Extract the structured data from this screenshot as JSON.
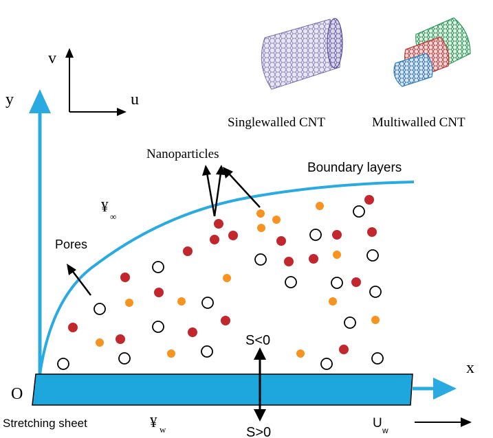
{
  "labels": {
    "v_axis": "v",
    "u_axis": "u",
    "y_axis": "y",
    "x_axis": "x",
    "origin": "O",
    "singlewalled": "Singlewalled CNT",
    "multiwalled": "Multiwalled CNT",
    "nanoparticles": "Nanoparticles",
    "boundary_layers": "Boundary layers",
    "pores": "Pores",
    "t_inf_symbol": "¥",
    "t_inf_sub": "∞",
    "t_w_symbol": "¥",
    "t_w_sub": "w",
    "s_neg": "S<0",
    "s_pos": "S>0",
    "stretching_sheet": "Stretching sheet",
    "u_w_symbol": "U",
    "u_w_sub": "w"
  },
  "colors": {
    "axis_blue": "#29abe2",
    "sheet_blue": "#1ea7dd",
    "red_particle": "#c1272d",
    "orange_particle": "#f7931e",
    "pore_stroke": "#000000",
    "swcnt_tint": "#6b5fa8",
    "mwcnt_outer": "#2a9d5c",
    "mwcnt_mid": "#c0392b",
    "mwcnt_inner": "#2e86c1"
  }
}
